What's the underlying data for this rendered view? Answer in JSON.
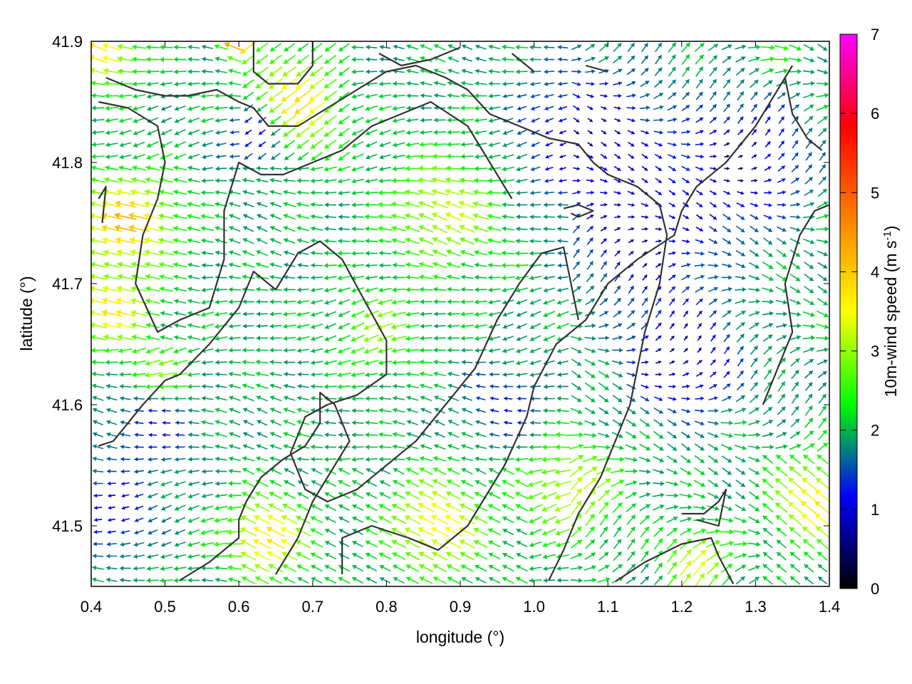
{
  "chart_data": {
    "type": "vector-field",
    "xlabel": "longitude (°)",
    "ylabel": "latitude (°)",
    "xlim": [
      0.4,
      1.4
    ],
    "ylim": [
      41.45,
      41.9
    ],
    "xticks": [
      "0.4",
      "0.5",
      "0.6",
      "0.7",
      "0.8",
      "0.9",
      "1.0",
      "1.1",
      "1.2",
      "1.3",
      "1.4"
    ],
    "yticks": [
      "41.5",
      "41.6",
      "41.7",
      "41.8",
      "41.9"
    ],
    "grid": false,
    "colorbar": {
      "label": "10m-wind speed (m s",
      "label_superscript": "-1",
      "label_end": ")",
      "range": [
        0,
        7
      ],
      "ticks": [
        "0",
        "1",
        "2",
        "3",
        "4",
        "5",
        "6",
        "7"
      ],
      "colors": [
        "#000000",
        "#0000ff",
        "#00ff00",
        "#ffff00",
        "#ff8000",
        "#ff0000",
        "#ff00ff"
      ]
    },
    "arrow_grid": {
      "nx": 54,
      "ny": 45
    },
    "speed_regions": [
      {
        "lon": 0.45,
        "lat": 41.75,
        "speed": 4.1,
        "radius": 0.06
      },
      {
        "lon": 0.43,
        "lat": 41.68,
        "speed": 3.7,
        "radius": 0.05
      },
      {
        "lon": 0.49,
        "lat": 41.62,
        "speed": 3.3,
        "radius": 0.04
      },
      {
        "lon": 0.42,
        "lat": 41.89,
        "speed": 3.8,
        "radius": 0.04
      },
      {
        "lon": 0.68,
        "lat": 41.85,
        "speed": 3.8,
        "radius": 0.06
      },
      {
        "lon": 0.6,
        "lat": 41.9,
        "speed": 4.8,
        "radius": 0.02
      },
      {
        "lon": 0.88,
        "lat": 41.76,
        "speed": 3.3,
        "radius": 0.07
      },
      {
        "lon": 0.79,
        "lat": 41.66,
        "speed": 2.9,
        "radius": 0.05
      },
      {
        "lon": 0.64,
        "lat": 41.49,
        "speed": 3.9,
        "radius": 0.05
      },
      {
        "lon": 0.87,
        "lat": 41.5,
        "speed": 3.7,
        "radius": 0.06
      },
      {
        "lon": 1.05,
        "lat": 41.53,
        "speed": 3.3,
        "radius": 0.06
      },
      {
        "lon": 1.38,
        "lat": 41.52,
        "speed": 3.8,
        "radius": 0.05
      },
      {
        "lon": 1.22,
        "lat": 41.47,
        "speed": 3.4,
        "radius": 0.04
      },
      {
        "lon": 0.48,
        "lat": 41.58,
        "speed": 1.2,
        "radius": 0.06
      },
      {
        "lon": 0.43,
        "lat": 41.51,
        "speed": 0.9,
        "radius": 0.05
      },
      {
        "lon": 0.62,
        "lat": 41.82,
        "speed": 1.0,
        "radius": 0.04
      },
      {
        "lon": 1.08,
        "lat": 41.82,
        "speed": 0.7,
        "radius": 0.09
      },
      {
        "lon": 1.15,
        "lat": 41.74,
        "speed": 0.6,
        "radius": 0.08
      },
      {
        "lon": 1.2,
        "lat": 41.64,
        "speed": 0.5,
        "radius": 0.07
      },
      {
        "lon": 1.28,
        "lat": 41.8,
        "speed": 0.6,
        "radius": 0.08
      },
      {
        "lon": 0.78,
        "lat": 41.88,
        "speed": 1.9,
        "radius": 0.05
      },
      {
        "lon": 1.33,
        "lat": 41.9,
        "speed": 2.3,
        "radius": 0.04
      },
      {
        "lon": 1.35,
        "lat": 41.62,
        "speed": 1.8,
        "radius": 0.04
      },
      {
        "lon": 0.96,
        "lat": 41.6,
        "speed": 1.2,
        "radius": 0.05
      }
    ],
    "contours": [
      [
        [
          0.41,
          41.566
        ],
        [
          0.43,
          41.57
        ],
        [
          0.47,
          41.6
        ],
        [
          0.5,
          41.62
        ],
        [
          0.52,
          41.625
        ],
        [
          0.56,
          41.65
        ],
        [
          0.6,
          41.68
        ],
        [
          0.62,
          41.71
        ],
        [
          0.65,
          41.695
        ],
        [
          0.68,
          41.725
        ],
        [
          0.71,
          41.735
        ],
        [
          0.74,
          41.72
        ],
        [
          0.764,
          41.693
        ],
        [
          0.8,
          41.653
        ],
        [
          0.8,
          41.625
        ],
        [
          0.76,
          41.608
        ],
        [
          0.72,
          41.6
        ],
        [
          0.69,
          41.59
        ],
        [
          0.67,
          41.56
        ],
        [
          0.69,
          41.53
        ],
        [
          0.72,
          41.52
        ],
        [
          0.76,
          41.53
        ],
        [
          0.8,
          41.55
        ],
        [
          0.84,
          41.57
        ],
        [
          0.88,
          41.6
        ],
        [
          0.92,
          41.63
        ],
        [
          0.95,
          41.67
        ],
        [
          0.98,
          41.7
        ],
        [
          1.01,
          41.725
        ],
        [
          1.04,
          41.73
        ],
        [
          1.05,
          41.7
        ],
        [
          1.06,
          41.67
        ]
      ],
      [
        [
          0.65,
          41.46
        ],
        [
          0.68,
          41.49
        ],
        [
          0.7,
          41.52
        ],
        [
          0.73,
          41.55
        ],
        [
          0.75,
          41.57
        ],
        [
          0.73,
          41.6
        ],
        [
          0.71,
          41.61
        ],
        [
          0.71,
          41.585
        ],
        [
          0.69,
          41.566
        ],
        [
          0.66,
          41.555
        ],
        [
          0.63,
          41.54
        ],
        [
          0.61,
          41.52
        ],
        [
          0.6,
          41.505
        ],
        [
          0.6,
          41.49
        ],
        [
          0.56,
          41.47
        ],
        [
          0.52,
          41.455
        ]
      ],
      [
        [
          0.74,
          41.46
        ],
        [
          0.74,
          41.49
        ],
        [
          0.78,
          41.5
        ],
        [
          0.83,
          41.49
        ],
        [
          0.87,
          41.48
        ],
        [
          0.91,
          41.5
        ],
        [
          0.93,
          41.52
        ],
        [
          0.96,
          41.55
        ],
        [
          0.99,
          41.59
        ],
        [
          1.0,
          41.615
        ],
        [
          1.03,
          41.65
        ],
        [
          1.07,
          41.67
        ],
        [
          1.1,
          41.7
        ],
        [
          1.14,
          41.72
        ],
        [
          1.19,
          41.74
        ],
        [
          1.2,
          41.76
        ],
        [
          1.22,
          41.78
        ],
        [
          1.26,
          41.8
        ],
        [
          1.3,
          41.83
        ],
        [
          1.33,
          41.86
        ],
        [
          1.35,
          41.88
        ]
      ],
      [
        [
          0.41,
          41.85
        ],
        [
          0.45,
          41.845
        ],
        [
          0.49,
          41.83
        ],
        [
          0.5,
          41.8
        ],
        [
          0.49,
          41.77
        ],
        [
          0.47,
          41.74
        ],
        [
          0.46,
          41.7
        ],
        [
          0.49,
          41.66
        ],
        [
          0.52,
          41.67
        ],
        [
          0.56,
          41.68
        ],
        [
          0.58,
          41.72
        ],
        [
          0.58,
          41.76
        ],
        [
          0.6,
          41.8
        ],
        [
          0.63,
          41.79
        ],
        [
          0.66,
          41.79
        ],
        [
          0.7,
          41.8
        ],
        [
          0.74,
          41.81
        ],
        [
          0.78,
          41.83
        ],
        [
          0.82,
          41.84
        ],
        [
          0.86,
          41.85
        ],
        [
          0.91,
          41.83
        ],
        [
          0.94,
          41.8
        ],
        [
          0.97,
          41.77
        ]
      ],
      [
        [
          0.42,
          41.87
        ],
        [
          0.46,
          41.86
        ],
        [
          0.5,
          41.855
        ],
        [
          0.53,
          41.855
        ],
        [
          0.57,
          41.86
        ],
        [
          0.6,
          41.85
        ],
        [
          0.62,
          41.845
        ],
        [
          0.64,
          41.83
        ],
        [
          0.68,
          41.83
        ],
        [
          0.72,
          41.845
        ],
        [
          0.76,
          41.86
        ],
        [
          0.8,
          41.875
        ],
        [
          0.84,
          41.88
        ],
        [
          0.88,
          41.87
        ],
        [
          0.91,
          41.86
        ],
        [
          0.94,
          41.84
        ],
        [
          0.98,
          41.83
        ],
        [
          1.02,
          41.82
        ],
        [
          1.06,
          41.815
        ],
        [
          1.08,
          41.8
        ],
        [
          1.1,
          41.79
        ],
        [
          1.14,
          41.78
        ],
        [
          1.17,
          41.765
        ],
        [
          1.18,
          41.74
        ],
        [
          1.17,
          41.7
        ],
        [
          1.15,
          41.66
        ],
        [
          1.14,
          41.63
        ],
        [
          1.13,
          41.6
        ],
        [
          1.11,
          41.57
        ],
        [
          1.09,
          41.54
        ],
        [
          1.06,
          41.51
        ],
        [
          1.04,
          41.48
        ],
        [
          1.02,
          41.455
        ]
      ],
      [
        [
          0.62,
          41.9
        ],
        [
          0.62,
          41.875
        ],
        [
          0.64,
          41.865
        ],
        [
          0.68,
          41.865
        ],
        [
          0.7,
          41.88
        ],
        [
          0.7,
          41.9
        ]
      ],
      [
        [
          0.79,
          41.89
        ],
        [
          0.82,
          41.88
        ],
        [
          0.86,
          41.885
        ],
        [
          0.9,
          41.895
        ]
      ],
      [
        [
          0.97,
          41.89
        ],
        [
          1.0,
          41.875
        ]
      ],
      [
        [
          1.07,
          41.88
        ],
        [
          1.1,
          41.875
        ]
      ],
      [
        [
          0.41,
          41.77
        ],
        [
          0.42,
          41.78
        ],
        [
          0.415,
          41.75
        ]
      ],
      [
        [
          1.04,
          41.762
        ],
        [
          1.06,
          41.765
        ],
        [
          1.08,
          41.76
        ],
        [
          1.06,
          41.755
        ],
        [
          1.05,
          41.758
        ]
      ],
      [
        [
          1.11,
          41.454
        ],
        [
          1.15,
          41.47
        ],
        [
          1.2,
          41.485
        ],
        [
          1.24,
          41.49
        ],
        [
          1.25,
          41.475
        ],
        [
          1.27,
          41.452
        ]
      ],
      [
        [
          1.2,
          41.51
        ],
        [
          1.23,
          41.51
        ],
        [
          1.25,
          41.52
        ],
        [
          1.26,
          41.53
        ],
        [
          1.25,
          41.5
        ],
        [
          1.22,
          41.505
        ]
      ],
      [
        [
          1.34,
          41.87
        ],
        [
          1.35,
          41.84
        ],
        [
          1.37,
          41.82
        ],
        [
          1.39,
          41.81
        ]
      ],
      [
        [
          1.31,
          41.6
        ],
        [
          1.33,
          41.63
        ],
        [
          1.35,
          41.66
        ],
        [
          1.34,
          41.7
        ],
        [
          1.36,
          41.74
        ],
        [
          1.38,
          41.76
        ],
        [
          1.4,
          41.765
        ]
      ]
    ]
  }
}
